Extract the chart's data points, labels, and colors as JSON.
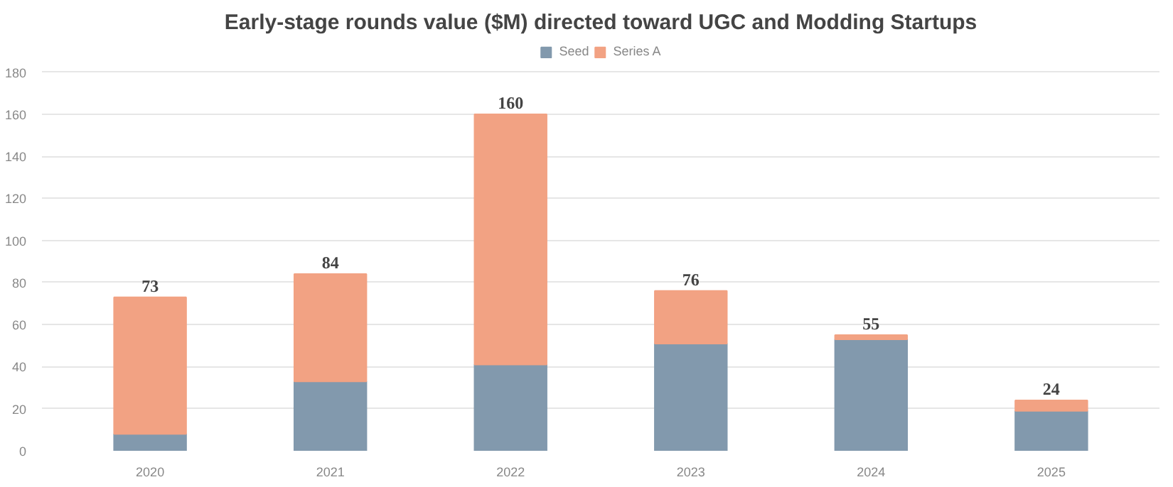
{
  "chart_data": {
    "type": "bar",
    "title": "Early-stage rounds value ($M) directed toward UGC and Modding Startups",
    "categories": [
      "2020",
      "2021",
      "2022",
      "2023",
      "2024",
      "2025"
    ],
    "series": [
      {
        "name": "Seed",
        "color": "#8299ad",
        "values": [
          8,
          33,
          41,
          51,
          53,
          19
        ]
      },
      {
        "name": "Series A",
        "color": "#f2a283",
        "values": [
          65,
          51,
          119,
          25,
          2,
          5
        ]
      }
    ],
    "stacked": true,
    "totals": [
      "73",
      "84",
      "160",
      "76",
      "55",
      "24"
    ],
    "ylim": [
      0,
      180
    ],
    "yticks": [
      0,
      20,
      40,
      60,
      80,
      100,
      120,
      140,
      160,
      180
    ],
    "grid": "y",
    "legend": "top"
  }
}
